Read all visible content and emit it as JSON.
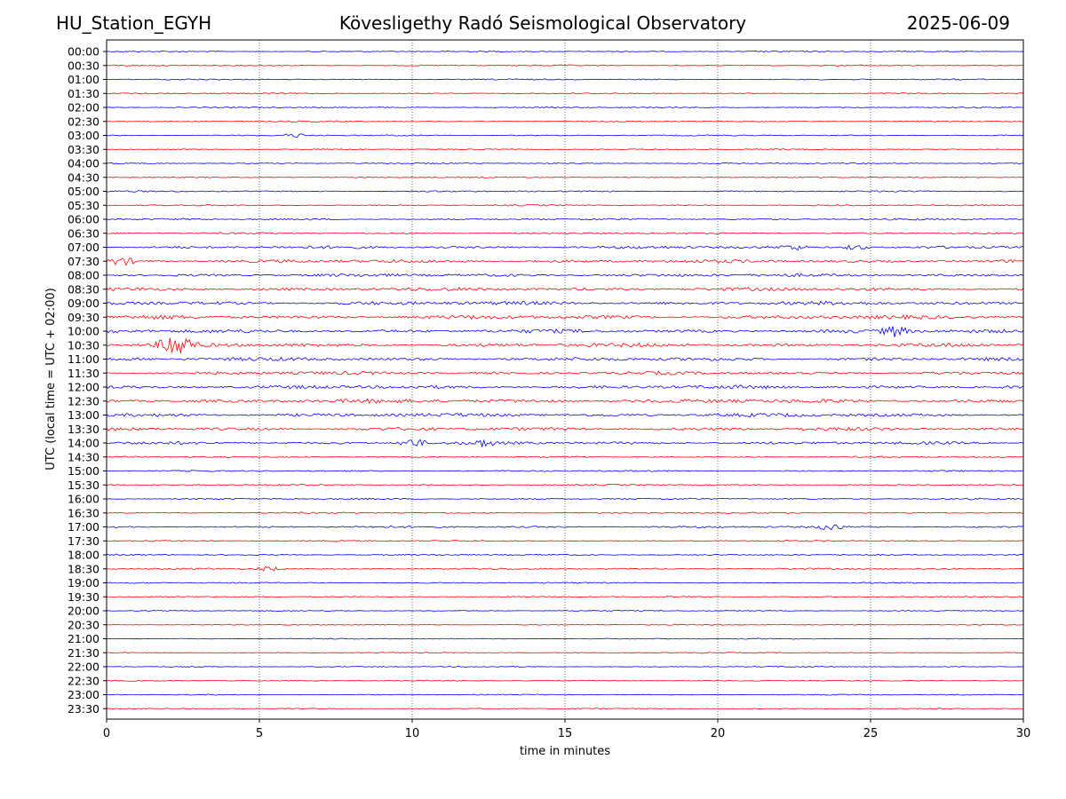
{
  "header": {
    "station": "HU_Station_EGYH",
    "observatory": "Kövesligethy Radó Seismological Observatory",
    "date": "2025-06-09"
  },
  "chart_data": {
    "type": "line",
    "title": "Kövesligethy Radó Seismological Observatory",
    "xlabel": "time in minutes",
    "ylabel": "UTC (local time = UTC + 02:00)",
    "xlim": [
      0,
      30
    ],
    "xticks": [
      0,
      5,
      10,
      15,
      20,
      25,
      30
    ],
    "grid": "vertical dotted lines at x ticks",
    "row_labels": [
      "00:00",
      "00:30",
      "01:00",
      "01:30",
      "02:00",
      "02:30",
      "03:00",
      "03:30",
      "04:00",
      "04:30",
      "05:00",
      "05:30",
      "06:00",
      "06:30",
      "07:00",
      "07:30",
      "08:00",
      "08:30",
      "09:00",
      "09:30",
      "10:00",
      "10:30",
      "11:00",
      "11:30",
      "12:00",
      "12:30",
      "13:00",
      "13:30",
      "14:00",
      "14:30",
      "15:00",
      "15:30",
      "16:00",
      "16:30",
      "17:00",
      "17:30",
      "18:00",
      "18:30",
      "19:00",
      "19:30",
      "20:00",
      "20:30",
      "21:00",
      "21:30",
      "22:00",
      "22:30",
      "23:00",
      "23:30"
    ],
    "trace_colors": [
      "#0000ff",
      "#ff0000"
    ],
    "activity_level": [
      0.3,
      0.3,
      0.3,
      0.3,
      0.3,
      0.3,
      0.3,
      0.3,
      0.3,
      0.3,
      0.35,
      0.35,
      0.45,
      0.4,
      0.7,
      0.8,
      0.75,
      0.8,
      0.9,
      0.95,
      0.9,
      0.9,
      0.85,
      0.8,
      0.85,
      0.95,
      0.85,
      0.8,
      0.7,
      0.35,
      0.35,
      0.35,
      0.4,
      0.35,
      0.5,
      0.35,
      0.35,
      0.4,
      0.3,
      0.25,
      0.25,
      0.25,
      0.25,
      0.25,
      0.25,
      0.25,
      0.25,
      0.25
    ],
    "events": [
      {
        "row": "03:00",
        "minute": 6.2,
        "amp": 0.25
      },
      {
        "row": "07:00",
        "minute": 22.5,
        "amp": 0.3
      },
      {
        "row": "07:00",
        "minute": 24.5,
        "amp": 0.35
      },
      {
        "row": "07:30",
        "minute": 0.5,
        "amp": 0.45
      },
      {
        "row": "10:00",
        "minute": 25.8,
        "amp": 0.6
      },
      {
        "row": "10:30",
        "minute": 2.1,
        "amp": 1.0
      },
      {
        "row": "10:30",
        "minute": 2.5,
        "amp": 0.9
      },
      {
        "row": "14:00",
        "minute": 10.0,
        "amp": 0.6
      },
      {
        "row": "14:00",
        "minute": 12.3,
        "amp": 0.35
      },
      {
        "row": "17:00",
        "minute": 23.7,
        "amp": 0.4
      },
      {
        "row": "18:30",
        "minute": 5.3,
        "amp": 0.3
      }
    ]
  }
}
